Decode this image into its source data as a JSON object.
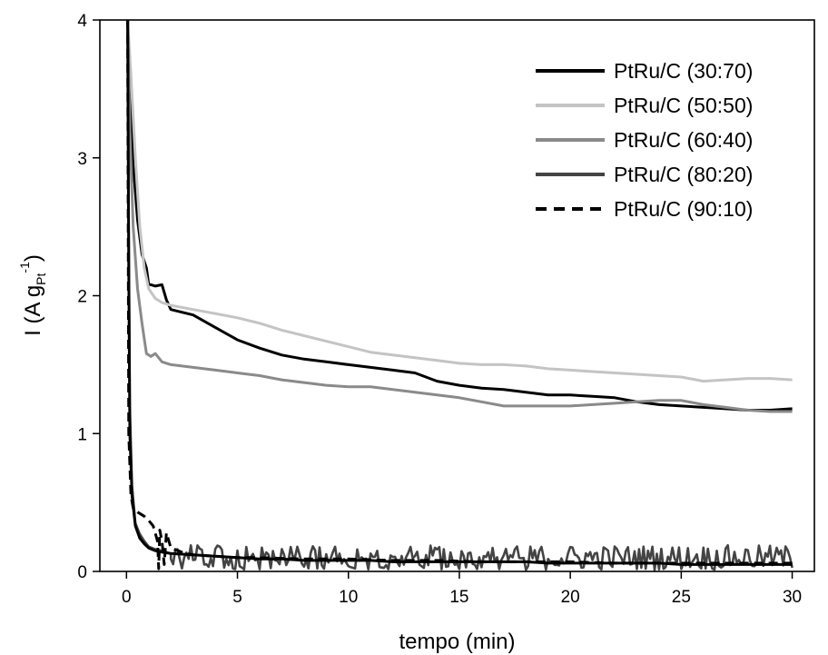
{
  "chart_data": {
    "type": "line",
    "xlabel": "tempo (min)",
    "ylabel": {
      "main": "I (A g",
      "sub": "Pt",
      "sup": "-1",
      "close": ")"
    },
    "xlim": [
      -1.2,
      31
    ],
    "ylim": [
      0,
      4
    ],
    "xticks": [
      0,
      5,
      10,
      15,
      20,
      25,
      30
    ],
    "yticks": [
      0,
      1,
      2,
      3,
      4
    ],
    "legend_position": "top-right",
    "series": [
      {
        "name": "PtRu/C (30:70)",
        "color": "#000000",
        "dash": "solid",
        "x": [
          0.05,
          0.15,
          0.3,
          0.5,
          0.7,
          0.9,
          1.0,
          1.1,
          1.3,
          1.6,
          1.8,
          2.0,
          2.5,
          3,
          4,
          5,
          6,
          7,
          8,
          9,
          10,
          11,
          12,
          13,
          14,
          15,
          16,
          17,
          18,
          19,
          20,
          21,
          22,
          23,
          24,
          25,
          26,
          27,
          28,
          29,
          30
        ],
        "y": [
          4.0,
          3.6,
          2.95,
          2.55,
          2.3,
          2.2,
          2.08,
          2.08,
          2.07,
          2.08,
          1.97,
          1.9,
          1.88,
          1.86,
          1.77,
          1.68,
          1.62,
          1.57,
          1.54,
          1.52,
          1.5,
          1.48,
          1.46,
          1.44,
          1.38,
          1.35,
          1.33,
          1.32,
          1.3,
          1.28,
          1.28,
          1.27,
          1.26,
          1.23,
          1.21,
          1.2,
          1.19,
          1.18,
          1.17,
          1.17,
          1.18
        ]
      },
      {
        "name": "PtRu/C (50:50)",
        "color": "#c4c4c4",
        "dash": "solid",
        "x": [
          0.05,
          0.2,
          0.4,
          0.6,
          0.8,
          1.0,
          1.3,
          1.6,
          2,
          3,
          4,
          5,
          6,
          7,
          8,
          9,
          10,
          11,
          12,
          13,
          14,
          15,
          16,
          17,
          18,
          19,
          20,
          21,
          22,
          23,
          24,
          25,
          26,
          27,
          28,
          29,
          30
        ],
        "y": [
          4.0,
          3.6,
          3.0,
          2.5,
          2.2,
          2.05,
          1.98,
          1.95,
          1.93,
          1.9,
          1.87,
          1.84,
          1.8,
          1.75,
          1.71,
          1.67,
          1.63,
          1.59,
          1.57,
          1.55,
          1.53,
          1.51,
          1.5,
          1.5,
          1.49,
          1.47,
          1.46,
          1.45,
          1.44,
          1.43,
          1.42,
          1.41,
          1.38,
          1.39,
          1.4,
          1.4,
          1.39
        ]
      },
      {
        "name": "PtRu/C (60:40)",
        "color": "#8a8a8a",
        "dash": "solid",
        "x": [
          0.05,
          0.15,
          0.3,
          0.5,
          0.7,
          0.9,
          1.1,
          1.3,
          1.6,
          2,
          3,
          4,
          5,
          6,
          7,
          8,
          9,
          10,
          11,
          12,
          13,
          14,
          15,
          16,
          17,
          18,
          19,
          20,
          21,
          22,
          23,
          24,
          25,
          26,
          27,
          28,
          29,
          30
        ],
        "y": [
          4.0,
          3.2,
          2.5,
          2.05,
          1.8,
          1.58,
          1.56,
          1.58,
          1.52,
          1.5,
          1.48,
          1.46,
          1.44,
          1.42,
          1.39,
          1.37,
          1.35,
          1.34,
          1.34,
          1.32,
          1.3,
          1.28,
          1.26,
          1.23,
          1.2,
          1.2,
          1.2,
          1.2,
          1.21,
          1.22,
          1.23,
          1.24,
          1.24,
          1.21,
          1.19,
          1.17,
          1.16,
          1.16
        ]
      },
      {
        "name": "PtRu/C (80:20)",
        "color": "#444444",
        "dash": "solid",
        "x": [
          0.05,
          0.1,
          0.15,
          0.25,
          0.4,
          0.6,
          0.8,
          1.0,
          1.3,
          1.6,
          2
        ],
        "y": [
          4.0,
          2.5,
          1.2,
          0.62,
          0.35,
          0.27,
          0.22,
          0.18,
          0.16,
          0.15,
          0.13
        ],
        "noise_from": 2,
        "noise_to": 30,
        "noise_step": 0.1,
        "noise_base": 0.1,
        "noise_amp": 0.09
      },
      {
        "name": "PtRu/C (90:10)",
        "color": "#000000",
        "dash": "dashed",
        "x": [
          0.05,
          0.1,
          0.2,
          0.3,
          0.5,
          0.8,
          1.0,
          1.2,
          1.4,
          1.45,
          1.5,
          1.6,
          1.7,
          1.8,
          2.0,
          2.5,
          3,
          4,
          5,
          6,
          8,
          10,
          12,
          14,
          16,
          18,
          20,
          22,
          24,
          26,
          28,
          30
        ],
        "y": [
          4.0,
          1.0,
          0.55,
          0.46,
          0.43,
          0.4,
          0.37,
          0.33,
          0.22,
          0.02,
          0.3,
          0.22,
          0.05,
          0.28,
          0.17,
          0.14,
          0.12,
          0.11,
          0.1,
          0.1,
          0.09,
          0.09,
          0.08,
          0.08,
          0.07,
          0.07,
          0.07,
          0.06,
          0.06,
          0.06,
          0.06,
          0.06
        ]
      },
      {
        "name": "",
        "color": "#000000",
        "dash": "solid",
        "x": [
          0.05,
          0.1,
          0.15,
          0.25,
          0.4,
          0.6,
          0.8,
          1.0,
          1.3,
          1.6,
          2,
          3,
          4,
          5,
          6,
          7,
          8,
          9,
          10,
          11,
          12,
          13,
          14,
          15,
          16,
          17,
          18,
          19,
          20,
          21,
          22,
          23,
          24,
          25,
          26,
          27,
          28,
          29,
          30
        ],
        "y": [
          4.0,
          2.2,
          1.0,
          0.55,
          0.33,
          0.24,
          0.2,
          0.17,
          0.15,
          0.14,
          0.13,
          0.12,
          0.11,
          0.1,
          0.09,
          0.09,
          0.08,
          0.08,
          0.08,
          0.08,
          0.07,
          0.07,
          0.07,
          0.07,
          0.07,
          0.07,
          0.07,
          0.06,
          0.06,
          0.06,
          0.06,
          0.06,
          0.06,
          0.05,
          0.05,
          0.05,
          0.05,
          0.05,
          0.05
        ]
      }
    ]
  }
}
